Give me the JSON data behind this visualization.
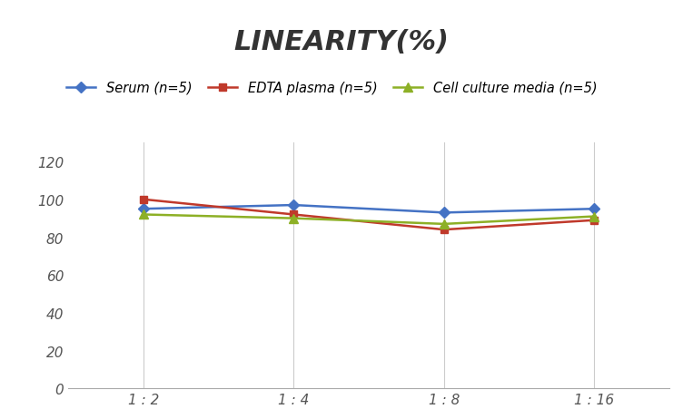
{
  "title": "LINEARITY(%)",
  "x_labels": [
    "1 : 2",
    "1 : 4",
    "1 : 8",
    "1 : 16"
  ],
  "x_positions": [
    0,
    1,
    2,
    3
  ],
  "series": [
    {
      "label": "Serum (n=5)",
      "values": [
        95,
        97,
        93,
        95
      ],
      "color": "#4472C4",
      "marker": "D",
      "marker_size": 6,
      "linewidth": 1.8
    },
    {
      "label": "EDTA plasma (n=5)",
      "values": [
        100,
        92,
        84,
        89
      ],
      "color": "#C0392B",
      "marker": "s",
      "marker_size": 6,
      "linewidth": 1.8
    },
    {
      "label": "Cell culture media (n=5)",
      "values": [
        92,
        90,
        87,
        91
      ],
      "color": "#8DB026",
      "marker": "^",
      "marker_size": 7,
      "linewidth": 1.8
    }
  ],
  "ylim": [
    0,
    130
  ],
  "yticks": [
    0,
    20,
    40,
    60,
    80,
    100,
    120
  ],
  "background_color": "#ffffff",
  "title_fontsize": 22,
  "legend_fontsize": 10.5,
  "tick_fontsize": 11,
  "grid_color": "#cccccc",
  "grid_linewidth": 0.8
}
